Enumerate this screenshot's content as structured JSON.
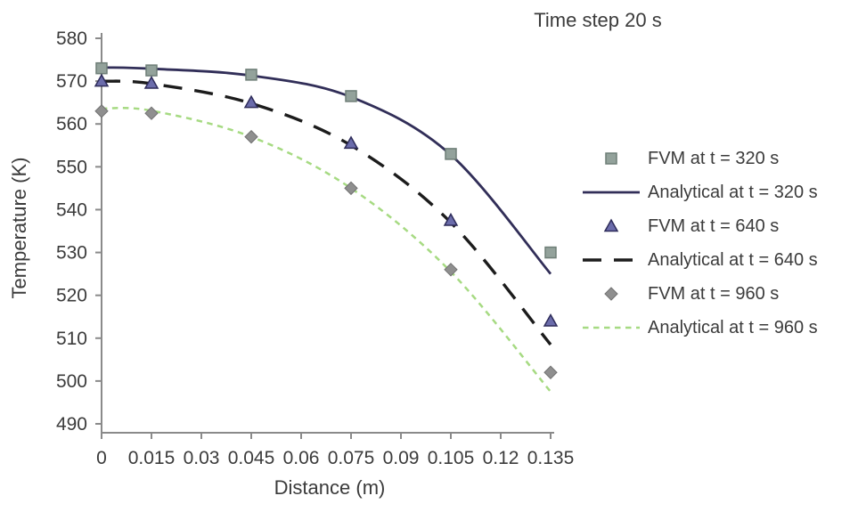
{
  "chart": {
    "title": "Time step 20 s",
    "xlabel": "Distance (m)",
    "ylabel": "Temperature (K)"
  },
  "chart_data": {
    "type": "line",
    "title": "Time step 20 s",
    "xlabel": "Distance (m)",
    "ylabel": "Temperature (K)",
    "grid": false,
    "legend_position": "right",
    "xlim": [
      0,
      0.135
    ],
    "ylim": [
      490,
      580
    ],
    "x_ticks": [
      0,
      0.015,
      0.03,
      0.045,
      0.06,
      0.075,
      0.09,
      0.105,
      0.12,
      0.135
    ],
    "x_tick_labels": [
      "0",
      "0.015",
      "0.03",
      "0.045",
      "0.06",
      "0.075",
      "0.09",
      "0.105",
      "0.12",
      "0.135"
    ],
    "y_ticks": [
      490,
      500,
      510,
      520,
      530,
      540,
      550,
      560,
      570,
      580
    ],
    "y_tick_labels": [
      "490",
      "500",
      "510",
      "520",
      "530",
      "540",
      "550",
      "560",
      "570",
      "580"
    ],
    "x": [
      0,
      0.015,
      0.045,
      0.075,
      0.105,
      0.135
    ],
    "series": [
      {
        "name": "FVM at t = 320 s",
        "kind": "markers",
        "marker": "square",
        "color": "#93a29b",
        "edge": "#6e7e77",
        "values": [
          573,
          572.5,
          571.5,
          566.5,
          553,
          530
        ]
      },
      {
        "name": "Analytical at t = 320 s",
        "kind": "line",
        "dash": "solid",
        "color": "#312e58",
        "width": 2.8,
        "values": [
          573.2,
          572.9,
          571.3,
          566.3,
          552.8,
          525
        ]
      },
      {
        "name": "FVM at t = 640 s",
        "kind": "markers",
        "marker": "triangle",
        "color": "#6b6cab",
        "edge": "#2e2c5a",
        "values": [
          570,
          569.5,
          565,
          555.5,
          537.5,
          514
        ]
      },
      {
        "name": "Analytical at t = 640 s",
        "kind": "line",
        "dash": "long-dash",
        "color": "#1c1c1c",
        "width": 3.4,
        "values": [
          570,
          569.4,
          564.8,
          555,
          537,
          508.5
        ]
      },
      {
        "name": "FVM at t = 960 s",
        "kind": "markers",
        "marker": "diamond",
        "color": "#8f8f8f",
        "edge": "#717171",
        "values": [
          563,
          562.5,
          557,
          545,
          526,
          502
        ]
      },
      {
        "name": "Analytical at t = 960 s",
        "kind": "line",
        "dash": "short-dash",
        "color": "#a6da82",
        "width": 2.5,
        "values": [
          563.6,
          563.1,
          557,
          545,
          525.5,
          497.5
        ]
      }
    ],
    "axis_color": "#8a8a8a",
    "text_color": "#3b3b3b"
  }
}
